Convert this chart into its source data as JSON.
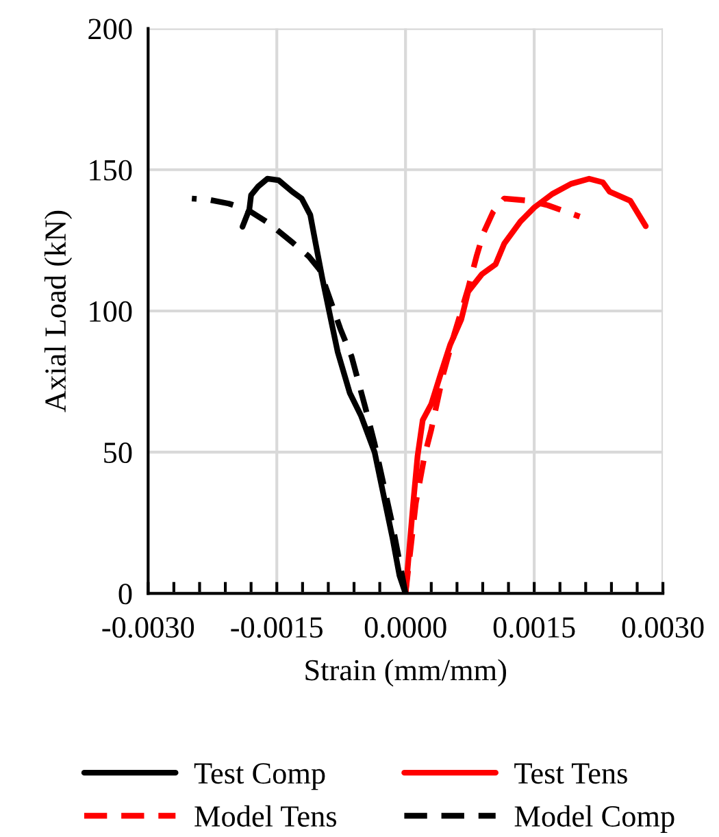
{
  "chart_data": {
    "type": "line",
    "xlabel": "Strain (mm/mm)",
    "ylabel": "Axial Load (kN)",
    "xlim": [
      -0.003,
      0.003
    ],
    "xticks": [
      {
        "value": -0.003,
        "label": "-0.0030"
      },
      {
        "value": -0.0015,
        "label": "-0.0015"
      },
      {
        "value": 0,
        "label": "0.0000"
      },
      {
        "value": 0.0015,
        "label": "0.0015"
      },
      {
        "value": 0.003,
        "label": "0.0030"
      }
    ],
    "ylim": [
      0,
      200
    ],
    "yticks": [
      0,
      50,
      100,
      150,
      200
    ],
    "grid": true,
    "legend": "bottom",
    "marker": "none",
    "series": [
      {
        "name": "Test Comp",
        "color": "#000000",
        "line_style": "solid",
        "x": [
          0,
          -7e-05,
          -0.00015,
          -0.00026,
          -0.00036,
          -0.00052,
          -0.00065,
          -0.00079,
          -0.00087,
          -0.00097,
          -0.00105,
          -0.00111,
          -0.00121,
          -0.00132,
          -0.00148,
          -0.00161,
          -0.00172,
          -0.0018,
          -0.00182,
          -0.0019
        ],
        "values": [
          0,
          6.3,
          19.4,
          35.4,
          50,
          63,
          71,
          85.4,
          97,
          111.6,
          124.3,
          134,
          139.8,
          142.2,
          146.3,
          146.8,
          144,
          141,
          136,
          129.8
        ]
      },
      {
        "name": "Test Tens",
        "color": "#ff0000",
        "line_style": "solid",
        "x": [
          0,
          9e-05,
          0.00014,
          0.0002,
          0.0003,
          0.00041,
          0.00052,
          0.00065,
          0.00073,
          0.00089,
          0.00105,
          0.00115,
          0.00134,
          0.0015,
          0.00171,
          0.00193,
          0.00214,
          0.0023,
          0.00238,
          0.00262,
          0.0028
        ],
        "values": [
          0,
          32,
          48.5,
          61.3,
          67,
          77.7,
          88,
          97,
          106.8,
          113,
          116.5,
          123.8,
          131.7,
          136.6,
          141.4,
          145,
          146.8,
          145.5,
          142.2,
          139,
          130
        ]
      },
      {
        "name": "Model Tens",
        "color": "#ff0000",
        "line_style": "dashed",
        "x": [
          0,
          0.00012,
          0.00022,
          0.0003,
          0.00044,
          0.00057,
          0.00073,
          0.00083,
          0.00091,
          0.00102,
          0.00115,
          0.00145,
          0.00166,
          0.00203
        ],
        "values": [
          0,
          32,
          48.5,
          58,
          77.7,
          92,
          108,
          119.6,
          127.7,
          135,
          139.8,
          139,
          137.4,
          133.4
        ]
      },
      {
        "name": "Model Comp",
        "color": "#000000",
        "line_style": "dashed",
        "x": [
          0,
          -0.00015,
          -0.00036,
          -0.00047,
          -0.00063,
          -0.00076,
          -0.00089,
          -0.001,
          -0.00113,
          -0.00132,
          -0.00159,
          -0.00185,
          -0.00206,
          -0.00228,
          -0.00249
        ],
        "values": [
          0,
          24,
          53,
          66,
          84,
          93.7,
          105,
          114.6,
          119.4,
          124.3,
          131,
          136,
          138,
          139.3,
          139.8
        ]
      }
    ]
  }
}
